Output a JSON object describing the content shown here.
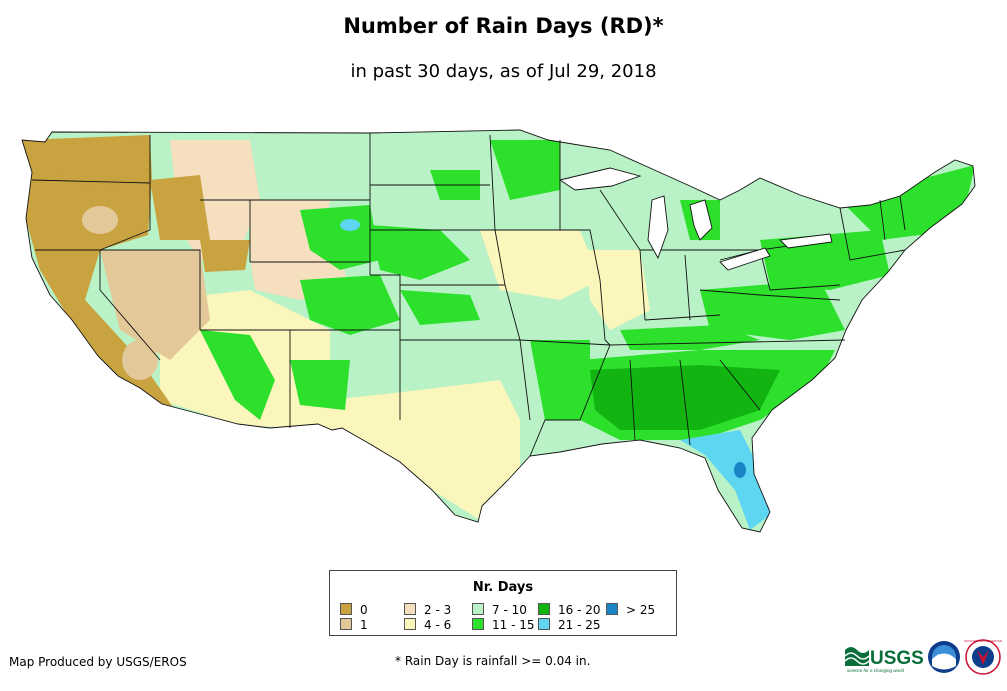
{
  "header": {
    "title": "Number of Rain Days (RD)*",
    "subtitle": "in past 30 days, as of Jul 29, 2018"
  },
  "legend": {
    "title": "Nr. Days",
    "items": [
      {
        "label": "0",
        "color": "#c9a33f"
      },
      {
        "label": "1",
        "color": "#e3c99a"
      },
      {
        "label": "2 - 3",
        "color": "#f6dfbf"
      },
      {
        "label": "4 - 6",
        "color": "#fbf6bb"
      },
      {
        "label": "7 - 10",
        "color": "#b8f2c6"
      },
      {
        "label": "11 - 15",
        "color": "#2ce02c"
      },
      {
        "label": "16 - 20",
        "color": "#11b411"
      },
      {
        "label": "21 - 25",
        "color": "#5ed6f2"
      },
      {
        "label": "> 25",
        "color": "#1a85c5"
      }
    ]
  },
  "footer": {
    "credit": "Map Produced by USGS/EROS",
    "footnote": "* Rain Day is rainfall >= 0.04 in.",
    "usgs_logo_text": "USGS",
    "usgs_tagline": "science for a changing world",
    "noaa_logo_text": "noaa",
    "nws_logo_text": "NATIONAL WEATHER SERVICE"
  }
}
